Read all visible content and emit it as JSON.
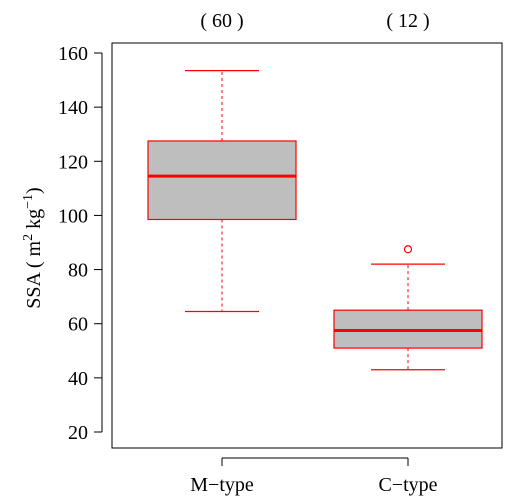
{
  "chart_data": {
    "type": "boxplot",
    "title": "",
    "xlabel": "",
    "ylabel": {
      "prefix": "SSA ( m",
      "sup1": "2",
      "mid": " kg",
      "sup2": "−1",
      "suffix": ")"
    },
    "ylim": [
      15,
      165
    ],
    "yticks": [
      "20",
      "40",
      "60",
      "80",
      "100",
      "120",
      "140",
      "160"
    ],
    "categories": [
      "M−type",
      "C−type"
    ],
    "counts": [
      "( 60 )",
      "( 12 )"
    ],
    "boxes": [
      {
        "category": "M−type",
        "whisker_low": 64.5,
        "q1": 98.5,
        "median": 114.5,
        "q3": 127.5,
        "whisker_high": 153.5,
        "outliers": []
      },
      {
        "category": "C−type",
        "whisker_low": 43,
        "q1": 51,
        "median": 57.5,
        "q3": 65,
        "whisker_high": 82,
        "outliers": [
          87.5
        ]
      }
    ],
    "box_fill": "#bebebe",
    "line_color": "#ff0000",
    "grid": false
  }
}
